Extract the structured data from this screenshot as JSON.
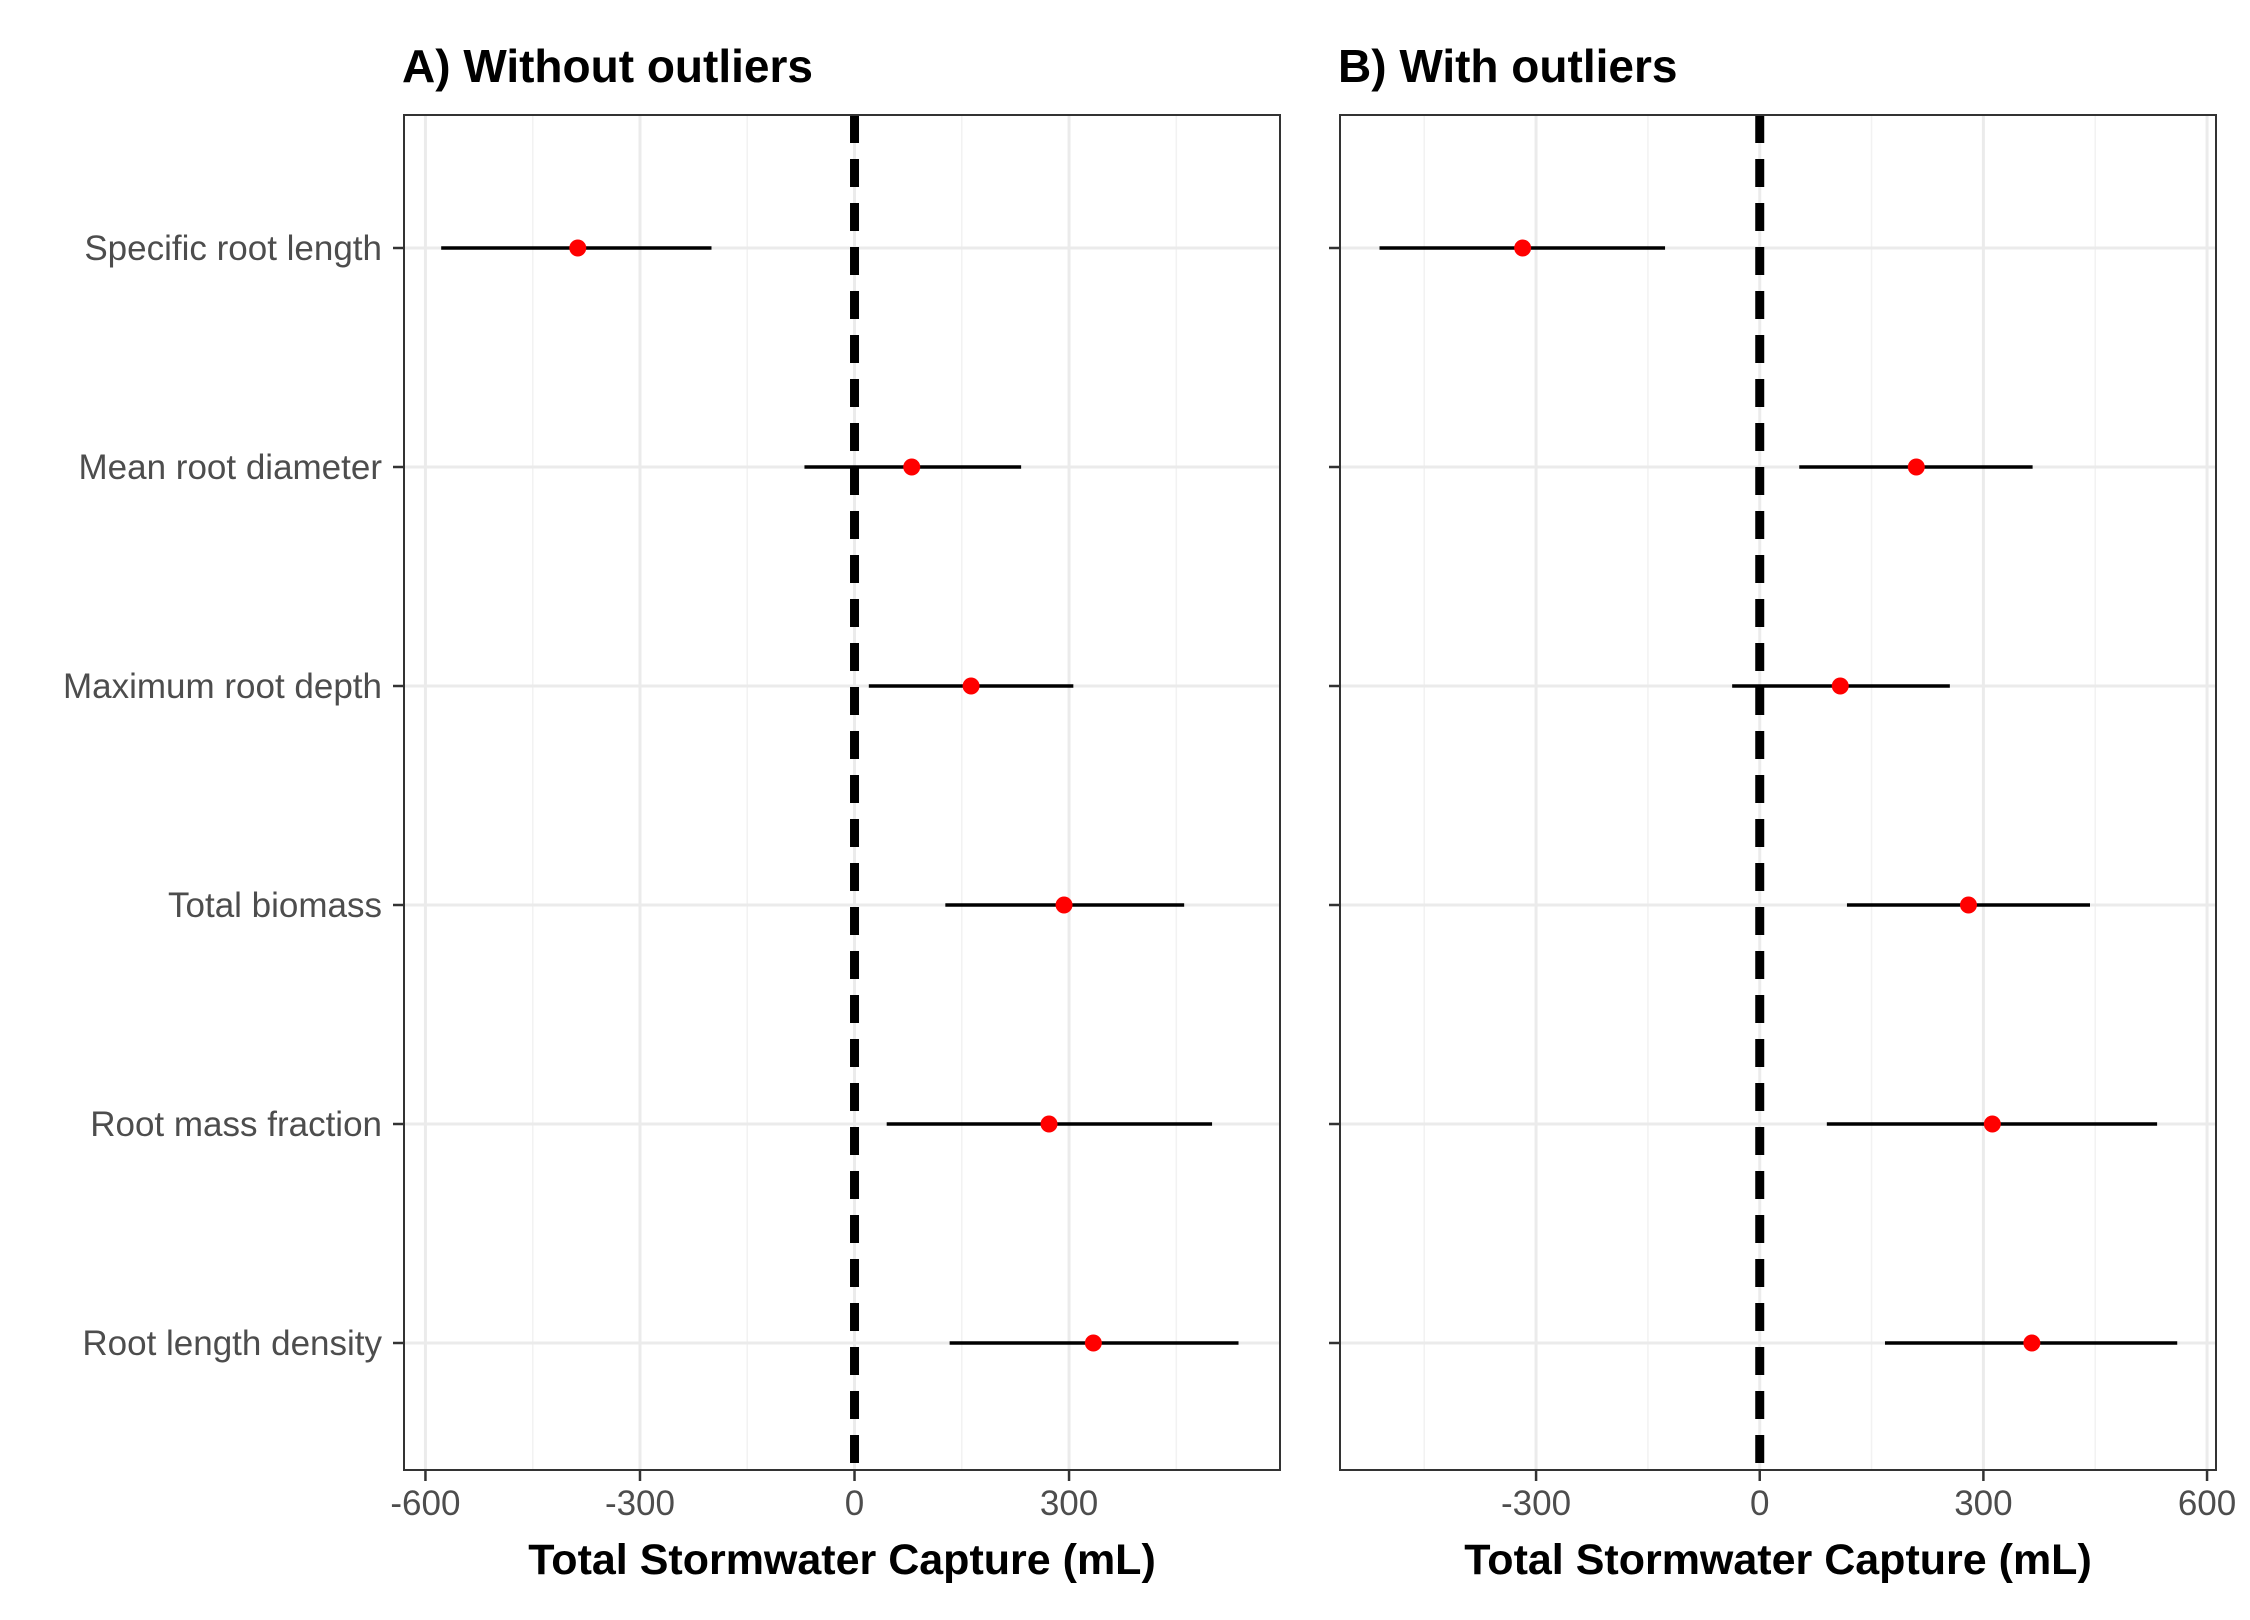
{
  "chart_data": [
    {
      "type": "scatter",
      "subtype": "coefficient-plot",
      "title": "A) Without outliers",
      "xlabel": "Total Stormwater Capture (mL)",
      "ylabel": "",
      "xlim": [
        -630,
        595
      ],
      "xticks": [
        -600,
        -300,
        0,
        300
      ],
      "xtick_labels": [
        "-600",
        "-300",
        "0",
        "300"
      ],
      "reference_line": 0,
      "grid": true,
      "show_category_labels": true,
      "categories": [
        "Specific root length",
        "Mean root diameter",
        "Maximum root depth",
        "Total biomass",
        "Root mass fraction",
        "Root length density"
      ],
      "estimate": [
        -387,
        80,
        163,
        293,
        272,
        334
      ],
      "lower": [
        -578,
        -70,
        20,
        127,
        45,
        133
      ],
      "upper": [
        -200,
        233,
        306,
        461,
        500,
        537
      ],
      "point_color": "#ff0000"
    },
    {
      "type": "scatter",
      "subtype": "coefficient-plot",
      "title": "B) With outliers",
      "xlabel": "Total Stormwater Capture (mL)",
      "ylabel": "",
      "xlim": [
        -563,
        612
      ],
      "xticks": [
        -300,
        0,
        300,
        600
      ],
      "xtick_labels": [
        "-300",
        "0",
        "300",
        "600"
      ],
      "reference_line": 0,
      "grid": true,
      "show_category_labels": false,
      "categories": [
        "Specific root length",
        "Mean root diameter",
        "Maximum root depth",
        "Total biomass",
        "Root mass fraction",
        "Root length density"
      ],
      "estimate": [
        -318,
        210,
        108,
        280,
        312,
        365
      ],
      "lower": [
        -510,
        53,
        -37,
        117,
        90,
        168
      ],
      "upper": [
        -127,
        366,
        255,
        443,
        533,
        560
      ],
      "point_color": "#ff0000"
    }
  ]
}
